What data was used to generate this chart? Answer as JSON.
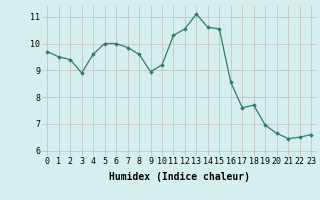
{
  "x": [
    0,
    1,
    2,
    3,
    4,
    5,
    6,
    7,
    8,
    9,
    10,
    11,
    12,
    13,
    14,
    15,
    16,
    17,
    18,
    19,
    20,
    21,
    22,
    23
  ],
  "y": [
    9.7,
    9.5,
    9.4,
    8.9,
    9.6,
    10.0,
    10.0,
    9.85,
    9.6,
    8.95,
    9.2,
    10.3,
    10.55,
    11.1,
    10.6,
    10.55,
    8.55,
    7.6,
    7.7,
    6.95,
    6.65,
    6.45,
    6.5,
    6.6
  ],
  "line_color": "#2e7d6e",
  "marker": "D",
  "marker_size": 1.8,
  "background_color": "#d7eeee",
  "grid_color": "#c4c4c4",
  "xlabel": "Humidex (Indice chaleur)",
  "xlabel_fontsize": 7,
  "tick_fontsize": 6,
  "ylim": [
    5.8,
    11.4
  ],
  "xlim": [
    -0.5,
    23.5
  ],
  "yticks": [
    6,
    7,
    8,
    9,
    10,
    11
  ],
  "xticks": [
    0,
    1,
    2,
    3,
    4,
    5,
    6,
    7,
    8,
    9,
    10,
    11,
    12,
    13,
    14,
    15,
    16,
    17,
    18,
    19,
    20,
    21,
    22,
    23
  ]
}
